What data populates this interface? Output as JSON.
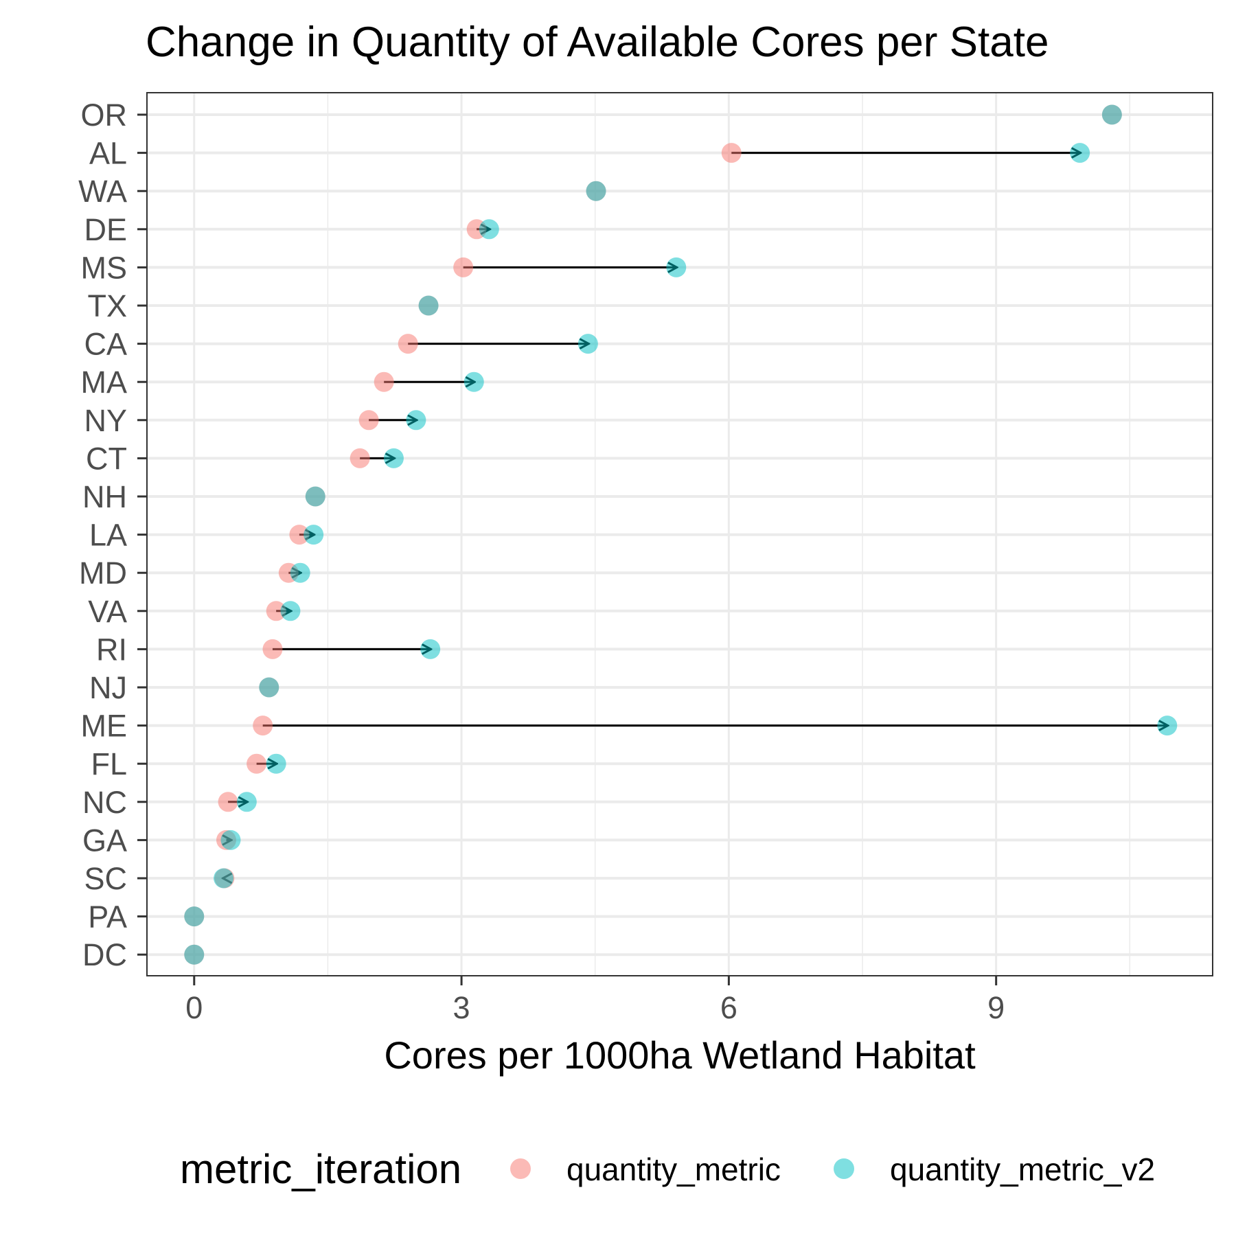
{
  "chart_data": {
    "type": "scatter",
    "title": "Change in Quantity of Available Cores per State",
    "xlabel": "Cores per 1000ha Wetland Habitat",
    "ylabel": "",
    "xlim": [
      -0.53,
      11.43
    ],
    "xticks": [
      "0",
      "3",
      "6",
      "9"
    ],
    "x_tick_values": [
      0,
      3,
      6,
      9
    ],
    "grid": true,
    "legend": {
      "title": "metric_iteration",
      "position": "bottom",
      "entries": [
        {
          "name": "quantity_metric",
          "color": "#F8766D"
        },
        {
          "name": "quantity_metric_v2",
          "color": "#00BFC4"
        }
      ]
    },
    "categories": [
      "OR",
      "AL",
      "WA",
      "DE",
      "MS",
      "TX",
      "CA",
      "MA",
      "NY",
      "CT",
      "NH",
      "LA",
      "MD",
      "VA",
      "RI",
      "NJ",
      "ME",
      "FL",
      "NC",
      "GA",
      "SC",
      "PA",
      "DC"
    ],
    "series": [
      {
        "name": "quantity_metric",
        "color": "#F8766D",
        "values": [
          10.3,
          6.03,
          4.51,
          3.17,
          3.02,
          2.63,
          2.4,
          2.13,
          1.96,
          1.86,
          1.36,
          1.18,
          1.06,
          0.92,
          0.88,
          0.84,
          0.77,
          0.7,
          0.38,
          0.36,
          0.34,
          0.0,
          0.0
        ]
      },
      {
        "name": "quantity_metric_v2",
        "color": "#00BFC4",
        "values": [
          10.3,
          9.94,
          4.51,
          3.31,
          5.41,
          2.63,
          4.42,
          3.14,
          2.49,
          2.24,
          1.36,
          1.34,
          1.19,
          1.08,
          2.65,
          0.84,
          10.92,
          0.92,
          0.59,
          0.41,
          0.33,
          0.0,
          0.0
        ]
      }
    ]
  }
}
